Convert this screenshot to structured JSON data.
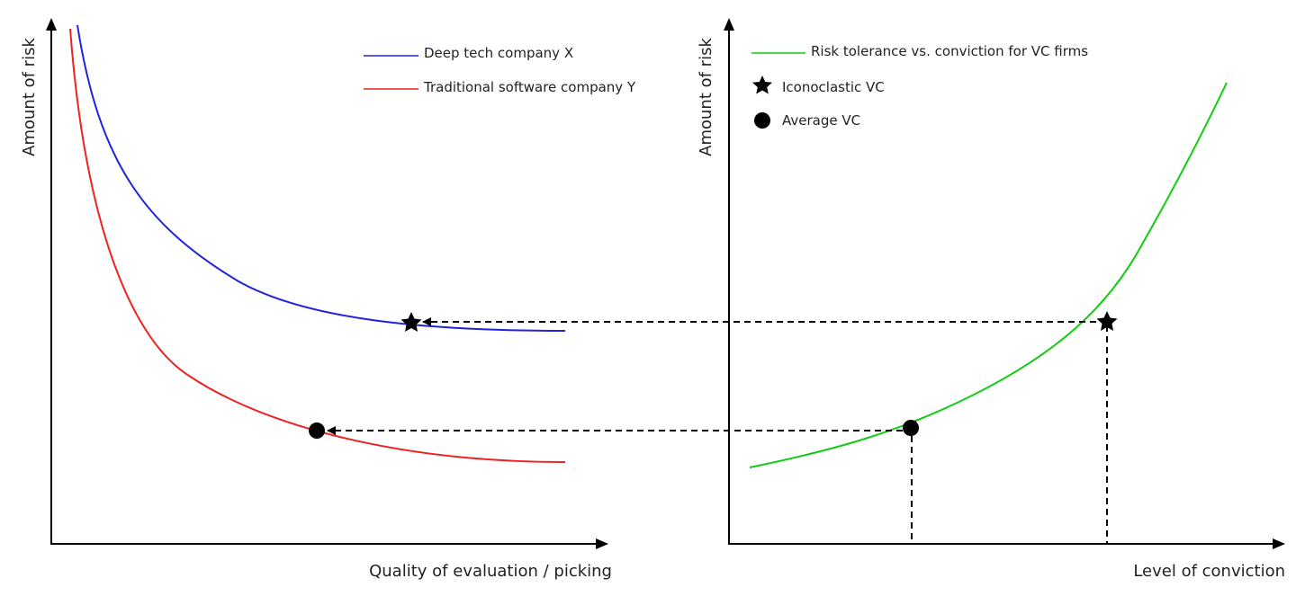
{
  "left_panel": {
    "y_axis_label": "Amount of risk",
    "x_axis_label": "Quality of evaluation / picking",
    "legend": [
      {
        "label": "Deep tech company X",
        "color": "#2222dd"
      },
      {
        "label": "Traditional software company Y",
        "color": "#ee2222"
      }
    ]
  },
  "right_panel": {
    "y_axis_label": "Amount of risk",
    "x_axis_label": "Level of conviction",
    "legend": [
      {
        "label": "Risk tolerance vs. conviction for VC firms",
        "color": "#11cc11",
        "icon": "line"
      },
      {
        "label": "Iconoclastic VC",
        "icon": "star-icon"
      },
      {
        "label": "Average VC",
        "icon": "circle-icon"
      }
    ]
  },
  "colors": {
    "axis": "#000000",
    "deep_tech": "#2222dd",
    "traditional": "#ee2222",
    "vc_curve": "#11cc11",
    "guide_lines": "#000000"
  }
}
